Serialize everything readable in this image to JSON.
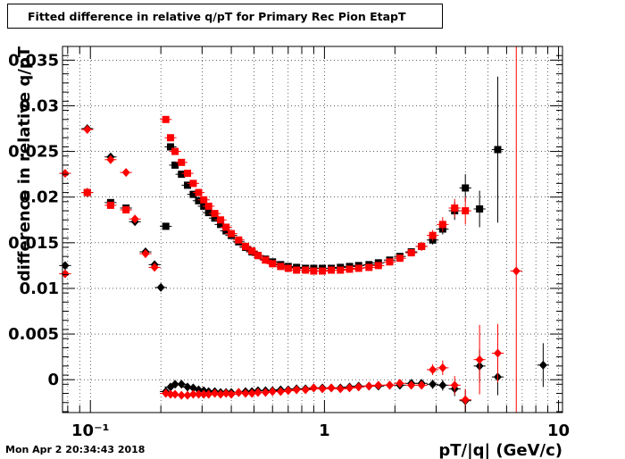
{
  "title": "Fitted difference in relative q/pT for Primary Rec Pion EtapT",
  "timestamp": "Mon Apr  2 20:34:43 2018",
  "chart_data": {
    "type": "scatter",
    "title": "Fitted difference in relative q/pT for Primary Rec Pion EtapT",
    "xlabel": "pT/|q| (GeV/c)",
    "ylabel": "difference in relative q/pT",
    "xscale": "log",
    "xlim": [
      0.076,
      10.4
    ],
    "ylim": [
      -0.0036,
      0.0365
    ],
    "grid": true,
    "x_ticks": [
      {
        "value": 0.1,
        "label": "10⁻¹"
      },
      {
        "value": 1,
        "label": "1"
      },
      {
        "value": 10,
        "label": "10"
      }
    ],
    "y_ticks": [
      {
        "value": 0,
        "label": "0"
      },
      {
        "value": 0.005,
        "label": "0.005"
      },
      {
        "value": 0.01,
        "label": "0.01"
      },
      {
        "value": 0.015,
        "label": "0.015"
      },
      {
        "value": 0.02,
        "label": "0.02"
      },
      {
        "value": 0.025,
        "label": "0.025"
      },
      {
        "value": 0.03,
        "label": "0.03"
      },
      {
        "value": 0.035,
        "label": "0.035"
      }
    ],
    "series": [
      {
        "marker": "square",
        "color": "#000000",
        "points": [
          [
            0.097,
            0.0205
          ],
          [
            0.122,
            0.0194
          ],
          [
            0.142,
            0.0188
          ],
          [
            0.21,
            0.0168
          ],
          [
            0.22,
            0.0255
          ],
          [
            0.23,
            0.0235
          ],
          [
            0.245,
            0.0225
          ],
          [
            0.26,
            0.0213
          ],
          [
            0.275,
            0.0203
          ],
          [
            0.29,
            0.0196
          ],
          [
            0.305,
            0.019
          ],
          [
            0.32,
            0.0183
          ],
          [
            0.34,
            0.0177
          ],
          [
            0.36,
            0.017
          ],
          [
            0.38,
            0.0163
          ],
          [
            0.4,
            0.0158
          ],
          [
            0.43,
            0.0151
          ],
          [
            0.46,
            0.0145
          ],
          [
            0.49,
            0.014
          ],
          [
            0.52,
            0.0136
          ],
          [
            0.56,
            0.0132
          ],
          [
            0.6,
            0.0129
          ],
          [
            0.65,
            0.0126
          ],
          [
            0.7,
            0.0124
          ],
          [
            0.76,
            0.0123
          ],
          [
            0.83,
            0.0122
          ],
          [
            0.9,
            0.0122
          ],
          [
            0.98,
            0.0122
          ],
          [
            1.07,
            0.0122
          ],
          [
            1.17,
            0.0123
          ],
          [
            1.28,
            0.0124
          ],
          [
            1.4,
            0.0125
          ],
          [
            1.55,
            0.0126
          ],
          [
            1.7,
            0.0128
          ],
          [
            1.9,
            0.0131
          ],
          [
            2.1,
            0.0135
          ],
          [
            2.35,
            0.014
          ],
          [
            2.6,
            0.0146
          ],
          [
            2.9,
            0.0153
          ],
          [
            3.2,
            0.0165
          ],
          [
            3.6,
            0.0185
          ],
          [
            4.0,
            0.021
          ],
          [
            4.6,
            0.0187
          ],
          [
            5.5,
            0.0252
          ]
        ],
        "yerr": [
          0.0005,
          0.0003,
          0.0003,
          0.0003,
          0.0003,
          0.0003,
          0.0003,
          0.0003,
          0.0003,
          0.0002,
          0.0002,
          0.0002,
          0.0002,
          0.0002,
          0.0002,
          0.0002,
          0.0002,
          0.0002,
          0.0002,
          0.0002,
          0.0002,
          0.0002,
          0.0002,
          0.0002,
          0.0002,
          0.0002,
          0.0002,
          0.0002,
          0.0002,
          0.0002,
          0.0002,
          0.0002,
          0.0002,
          0.0002,
          0.0002,
          0.0003,
          0.0004,
          0.0004,
          0.0005,
          0.0006,
          0.001,
          0.0015,
          0.002,
          0.008
        ]
      },
      {
        "marker": "square",
        "color": "#ff0000",
        "points": [
          [
            0.097,
            0.0205
          ],
          [
            0.122,
            0.0191
          ],
          [
            0.142,
            0.0186
          ],
          [
            0.21,
            0.0285
          ],
          [
            0.22,
            0.0265
          ],
          [
            0.23,
            0.025
          ],
          [
            0.245,
            0.0238
          ],
          [
            0.26,
            0.0226
          ],
          [
            0.275,
            0.0215
          ],
          [
            0.29,
            0.0205
          ],
          [
            0.305,
            0.0197
          ],
          [
            0.32,
            0.019
          ],
          [
            0.34,
            0.0182
          ],
          [
            0.36,
            0.0175
          ],
          [
            0.38,
            0.0167
          ],
          [
            0.4,
            0.016
          ],
          [
            0.43,
            0.0153
          ],
          [
            0.46,
            0.0146
          ],
          [
            0.49,
            0.0141
          ],
          [
            0.52,
            0.0136
          ],
          [
            0.56,
            0.0131
          ],
          [
            0.6,
            0.0127
          ],
          [
            0.65,
            0.0124
          ],
          [
            0.7,
            0.0122
          ],
          [
            0.76,
            0.012
          ],
          [
            0.83,
            0.012
          ],
          [
            0.9,
            0.0119
          ],
          [
            0.98,
            0.0119
          ],
          [
            1.07,
            0.012
          ],
          [
            1.17,
            0.012
          ],
          [
            1.28,
            0.0121
          ],
          [
            1.4,
            0.0122
          ],
          [
            1.55,
            0.0123
          ],
          [
            1.7,
            0.0125
          ],
          [
            1.9,
            0.0129
          ],
          [
            2.1,
            0.0133
          ],
          [
            2.35,
            0.0139
          ],
          [
            2.6,
            0.0146
          ],
          [
            2.9,
            0.0158
          ],
          [
            3.2,
            0.017
          ],
          [
            3.6,
            0.0188
          ],
          [
            4.0,
            0.0185
          ]
        ],
        "yerr": [
          0.0005,
          0.0003,
          0.0003,
          0.0003,
          0.0003,
          0.0003,
          0.0003,
          0.0003,
          0.0003,
          0.0002,
          0.0002,
          0.0002,
          0.0002,
          0.0002,
          0.0002,
          0.0002,
          0.0002,
          0.0002,
          0.0002,
          0.0002,
          0.0002,
          0.0002,
          0.0002,
          0.0002,
          0.0002,
          0.0002,
          0.0002,
          0.0002,
          0.0002,
          0.0002,
          0.0002,
          0.0002,
          0.0002,
          0.0002,
          0.0002,
          0.0003,
          0.0004,
          0.0005,
          0.0006,
          0.0008,
          0.001,
          0.0015
        ]
      },
      {
        "marker": "diamond",
        "color": "#000000",
        "points": [
          [
            0.078,
            0.0125
          ],
          [
            0.097,
            0.0275
          ],
          [
            0.122,
            0.0244
          ],
          [
            0.155,
            0.0173
          ],
          [
            0.172,
            0.014
          ],
          [
            0.188,
            0.0126
          ],
          [
            0.2,
            0.0101
          ],
          [
            0.21,
            -0.0013
          ],
          [
            0.22,
            -0.0008
          ],
          [
            0.23,
            -0.0005
          ],
          [
            0.245,
            -0.0005
          ],
          [
            0.26,
            -0.0008
          ],
          [
            0.275,
            -0.0009
          ],
          [
            0.29,
            -0.0011
          ],
          [
            0.305,
            -0.0012
          ],
          [
            0.32,
            -0.0013
          ],
          [
            0.34,
            -0.0013
          ],
          [
            0.36,
            -0.0014
          ],
          [
            0.38,
            -0.0014
          ],
          [
            0.4,
            -0.0014
          ],
          [
            0.43,
            -0.0014
          ],
          [
            0.46,
            -0.0013
          ],
          [
            0.49,
            -0.0013
          ],
          [
            0.52,
            -0.0012
          ],
          [
            0.56,
            -0.0012
          ],
          [
            0.6,
            -0.0012
          ],
          [
            0.65,
            -0.0011
          ],
          [
            0.7,
            -0.0011
          ],
          [
            0.76,
            -0.001
          ],
          [
            0.83,
            -0.001
          ],
          [
            0.9,
            -0.0009
          ],
          [
            0.98,
            -0.0009
          ],
          [
            1.07,
            -0.0009
          ],
          [
            1.17,
            -0.0009
          ],
          [
            1.28,
            -0.0008
          ],
          [
            1.4,
            -0.0007
          ],
          [
            1.55,
            -0.0007
          ],
          [
            1.7,
            -0.0007
          ],
          [
            1.9,
            -0.0006
          ],
          [
            2.1,
            -0.0006
          ],
          [
            2.35,
            -0.0004
          ],
          [
            2.6,
            -0.0004
          ],
          [
            2.9,
            -0.0005
          ],
          [
            3.2,
            -0.0006
          ],
          [
            3.6,
            -0.001
          ],
          [
            4.0,
            -0.0023
          ],
          [
            4.6,
            0.0015
          ],
          [
            5.5,
            0.0003
          ],
          [
            8.6,
            0.0016
          ]
        ],
        "yerr": [
          0.0004,
          0.0002,
          0.0002,
          0.0002,
          0.0002,
          0.0002,
          0.0002,
          0.0003,
          0.0003,
          0.0003,
          0.0002,
          0.0002,
          0.0002,
          0.0002,
          0.0002,
          0.0002,
          0.0002,
          0.0002,
          0.0002,
          0.0002,
          0.0002,
          0.0002,
          0.0002,
          0.0002,
          0.0002,
          0.0002,
          0.0002,
          0.0002,
          0.0002,
          0.0002,
          0.0002,
          0.0002,
          0.0002,
          0.0002,
          0.0002,
          0.0002,
          0.0002,
          0.0002,
          0.0002,
          0.0002,
          0.0003,
          0.0004,
          0.0005,
          0.0006,
          0.0008,
          0.0012,
          0.0018,
          0.002,
          0.0024
        ]
      },
      {
        "marker": "diamond",
        "color": "#ff0000",
        "points": [
          [
            0.078,
            0.0226
          ],
          [
            0.097,
            0.0274
          ],
          [
            0.122,
            0.0241
          ],
          [
            0.142,
            0.0227
          ],
          [
            0.155,
            0.0176
          ],
          [
            0.172,
            0.0138
          ],
          [
            0.188,
            0.0123
          ],
          [
            0.21,
            -0.0015
          ],
          [
            0.22,
            -0.0016
          ],
          [
            0.23,
            -0.0016
          ],
          [
            0.245,
            -0.0017
          ],
          [
            0.26,
            -0.0017
          ],
          [
            0.275,
            -0.0016
          ],
          [
            0.29,
            -0.0016
          ],
          [
            0.305,
            -0.0016
          ],
          [
            0.32,
            -0.0016
          ],
          [
            0.34,
            -0.0015
          ],
          [
            0.36,
            -0.0016
          ],
          [
            0.38,
            -0.0015
          ],
          [
            0.4,
            -0.0016
          ],
          [
            0.43,
            -0.0014
          ],
          [
            0.46,
            -0.0015
          ],
          [
            0.49,
            -0.0015
          ],
          [
            0.52,
            -0.0014
          ],
          [
            0.56,
            -0.0014
          ],
          [
            0.6,
            -0.0013
          ],
          [
            0.65,
            -0.0013
          ],
          [
            0.7,
            -0.0012
          ],
          [
            0.76,
            -0.0011
          ],
          [
            0.83,
            -0.0011
          ],
          [
            0.9,
            -0.0009
          ],
          [
            0.98,
            -0.001
          ],
          [
            1.07,
            -0.0009
          ],
          [
            1.17,
            -0.001
          ],
          [
            1.28,
            -0.0009
          ],
          [
            1.4,
            -0.0008
          ],
          [
            1.55,
            -0.0007
          ],
          [
            1.7,
            -0.0006
          ],
          [
            1.9,
            -0.0006
          ],
          [
            2.1,
            -0.0004
          ],
          [
            2.35,
            -0.0006
          ],
          [
            2.6,
            -0.0006
          ],
          [
            2.9,
            0.0011
          ],
          [
            3.2,
            0.0013
          ],
          [
            3.6,
            -0.0006
          ],
          [
            4.0,
            -0.0022
          ],
          [
            4.6,
            0.0022
          ],
          [
            5.5,
            0.0029
          ],
          [
            6.6,
            0.0119
          ],
          [
            0.078,
            0.0116
          ]
        ],
        "yerr": [
          0.0004,
          0.0002,
          0.0002,
          0.0002,
          0.0002,
          0.0002,
          0.0002,
          0.0003,
          0.0003,
          0.0003,
          0.0002,
          0.0002,
          0.0002,
          0.0002,
          0.0002,
          0.0002,
          0.0002,
          0.0002,
          0.0002,
          0.0002,
          0.0002,
          0.0002,
          0.0002,
          0.0002,
          0.0002,
          0.0002,
          0.0002,
          0.0002,
          0.0002,
          0.0002,
          0.0002,
          0.0002,
          0.0002,
          0.0002,
          0.0002,
          0.0002,
          0.0002,
          0.0002,
          0.0002,
          0.0002,
          0.0003,
          0.0004,
          0.0006,
          0.0008,
          0.001,
          0.0012,
          0.0038,
          0.0032,
          0.03,
          0.0004
        ]
      }
    ]
  }
}
